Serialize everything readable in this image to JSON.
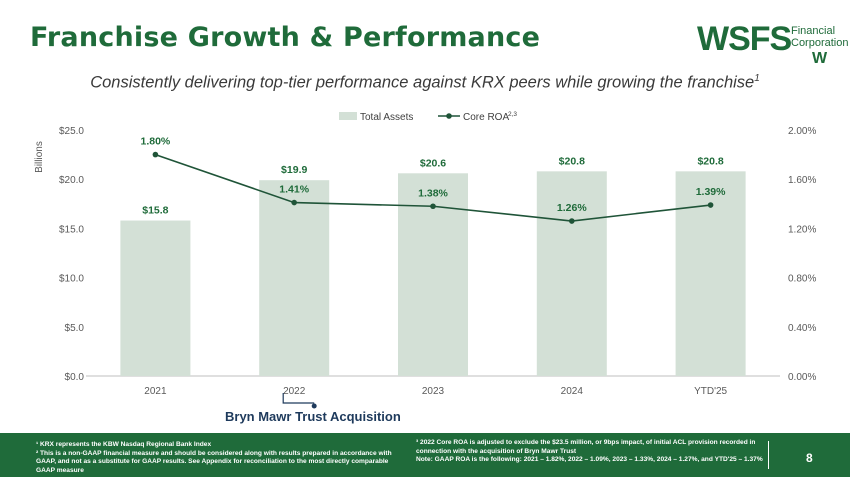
{
  "header": {
    "title": "Franchise Growth & Performance",
    "subtitle": "Consistently delivering top-tier performance against KRX peers while growing the franchise",
    "subtitle_sup": "1"
  },
  "logo": {
    "main": "WSFS",
    "line1": "Financial",
    "line2": "Corporation",
    "mark": "W"
  },
  "colors": {
    "brand": "#1f6b3a",
    "bar": "#d3e0d6",
    "line": "#1f5438"
  },
  "chart_data": {
    "type": "bar+line",
    "categories": [
      "2021",
      "2022",
      "2023",
      "2024",
      "YTD'25"
    ],
    "series": [
      {
        "name": "Total Assets",
        "type": "bar",
        "axis": "left",
        "values": [
          15.8,
          19.9,
          20.6,
          20.8,
          20.8
        ],
        "labels": [
          "$15.8",
          "$19.9",
          "$20.6",
          "$20.8",
          "$20.8"
        ]
      },
      {
        "name": "Core ROA",
        "name_sup": "2,3",
        "type": "line",
        "axis": "right",
        "values": [
          1.8,
          1.41,
          1.38,
          1.26,
          1.39
        ],
        "labels": [
          "1.80%",
          "1.41%",
          "1.38%",
          "1.26%",
          "1.39%"
        ]
      }
    ],
    "left_axis": {
      "label": "Billions",
      "ylim": [
        0,
        25
      ],
      "ticks": [
        "$0.0",
        "$5.0",
        "$10.0",
        "$15.0",
        "$20.0",
        "$25.0"
      ]
    },
    "right_axis": {
      "ylim": [
        0,
        2.0
      ],
      "ticks": [
        "0.00%",
        "0.40%",
        "0.80%",
        "1.20%",
        "1.60%",
        "2.00%"
      ]
    },
    "legend": [
      "Total Assets",
      "Core ROA"
    ],
    "legend_position": "top-center",
    "annotation": "Bryn Mawr Trust Acquisition"
  },
  "footnotes": {
    "left": [
      "¹ KRX represents the KBW Nasdaq Regional Bank Index",
      "² This is a non-GAAP financial measure and should be considered along with results prepared in accordance with GAAP, and not as a substitute for GAAP results. See Appendix for reconciliation to the most directly comparable GAAP measure"
    ],
    "right": [
      "³ 2022 Core ROA is adjusted to exclude the $23.5 million, or 9bps impact, of initial ACL provision recorded in connection with the acquisition of Bryn Mawr Trust",
      "Note: GAAP ROA is the following: 2021 – 1.82%, 2022 – 1.09%, 2023 – 1.33%, 2024 – 1.27%, and YTD'25 – 1.37%"
    ]
  },
  "page_number": "8"
}
